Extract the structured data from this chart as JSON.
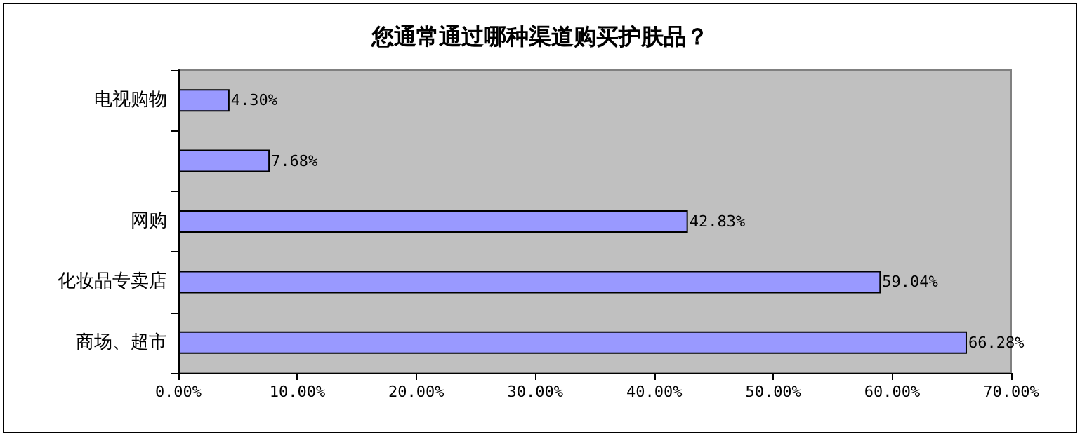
{
  "chart_data": {
    "type": "bar",
    "orientation": "horizontal",
    "title": "您通常通过哪种渠道购买护肤品？",
    "categories": [
      "电视购物",
      null,
      "网购",
      "化妆品专卖店",
      "商场、超市"
    ],
    "values": [
      4.3,
      7.68,
      42.83,
      59.04,
      66.28
    ],
    "value_labels": [
      "4.30%",
      "7.68%",
      "42.83%",
      "59.04%",
      "66.28%"
    ],
    "color": "#9999ff",
    "xlim": [
      0,
      70
    ],
    "xticks": [
      {
        "value": 0,
        "label": "0.00%"
      },
      {
        "value": 10,
        "label": "10.00%"
      },
      {
        "value": 20,
        "label": "20.00%"
      },
      {
        "value": 30,
        "label": "30.00%"
      },
      {
        "value": 40,
        "label": "40.00%"
      },
      {
        "value": 50,
        "label": "50.00%"
      },
      {
        "value": 60,
        "label": "60.00%"
      },
      {
        "value": 70,
        "label": "70.00%"
      }
    ],
    "grid": false
  }
}
